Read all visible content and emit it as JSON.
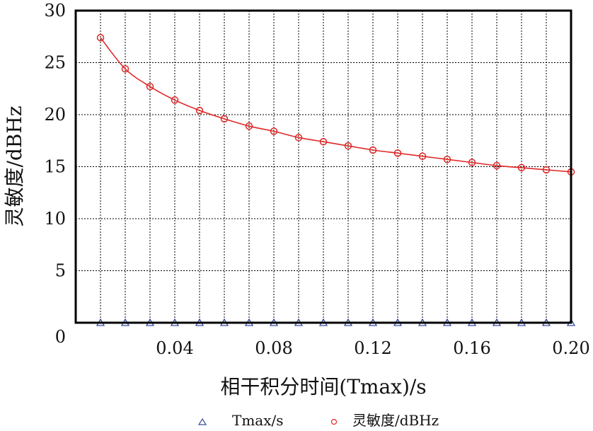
{
  "chart_data": {
    "type": "line",
    "title": "",
    "xlabel": "相干积分时间(Tmax)/s",
    "ylabel": "灵敏度/dBHz",
    "xlim": [
      0,
      0.2
    ],
    "ylim": [
      0,
      30
    ],
    "x_ticks": [
      "0.04",
      "0.08",
      "0.12",
      "0.16",
      "0.20"
    ],
    "x_tick_values": [
      0.04,
      0.08,
      0.12,
      0.16,
      0.2
    ],
    "y_ticks": [
      "0",
      "5",
      "10",
      "15",
      "20",
      "25",
      "30"
    ],
    "y_tick_values": [
      0,
      5,
      10,
      15,
      20,
      25,
      30
    ],
    "grid": true,
    "legend_position": "bottom",
    "x": [
      0.01,
      0.02,
      0.03,
      0.04,
      0.05,
      0.06,
      0.07,
      0.08,
      0.09,
      0.1,
      0.11,
      0.12,
      0.13,
      0.14,
      0.15,
      0.16,
      0.17,
      0.18,
      0.19,
      0.2
    ],
    "series": [
      {
        "name": "Tmax/s",
        "marker": "triangle",
        "color": "#3a4fa0",
        "values": [
          0,
          0,
          0,
          0,
          0,
          0,
          0,
          0,
          0,
          0,
          0,
          0,
          0,
          0,
          0,
          0,
          0,
          0,
          0,
          0
        ]
      },
      {
        "name": "灵敏度/dBHz",
        "marker": "circle",
        "color": "#e02828",
        "values": [
          27.4,
          24.4,
          22.7,
          21.4,
          20.4,
          19.6,
          18.9,
          18.4,
          17.8,
          17.4,
          17.0,
          16.6,
          16.3,
          16.0,
          15.7,
          15.4,
          15.1,
          14.9,
          14.7,
          14.5
        ]
      }
    ]
  }
}
